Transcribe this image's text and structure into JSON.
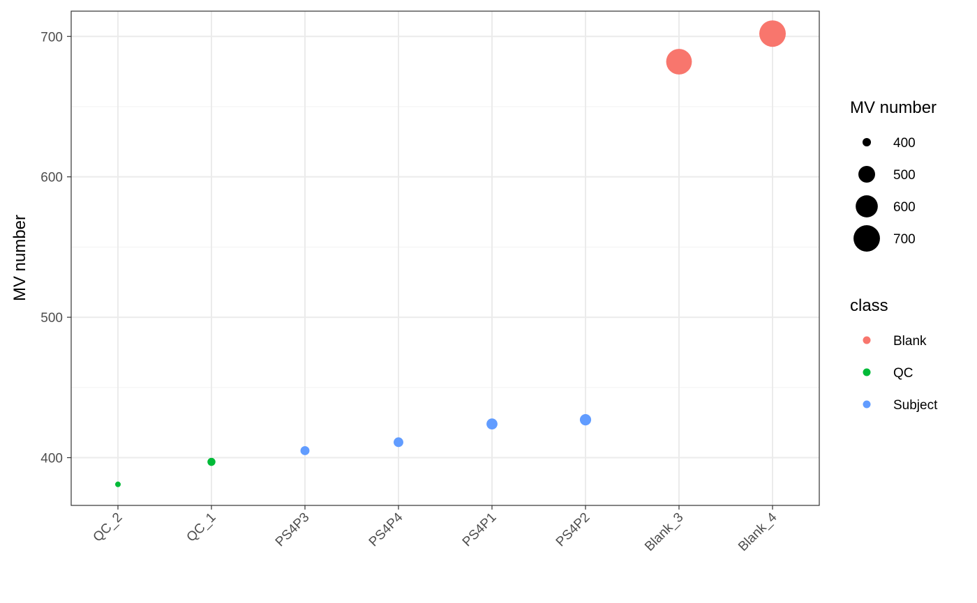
{
  "chart_data": {
    "type": "scatter",
    "title": "",
    "xlabel": "",
    "ylabel": "MV number",
    "categories": [
      "QC_2",
      "QC_1",
      "PS4P3",
      "PS4P4",
      "PS4P1",
      "PS4P2",
      "Blank_3",
      "Blank_4"
    ],
    "points": [
      {
        "x": "QC_2",
        "y": 381,
        "class": "QC"
      },
      {
        "x": "QC_1",
        "y": 397,
        "class": "QC"
      },
      {
        "x": "PS4P3",
        "y": 405,
        "class": "Subject"
      },
      {
        "x": "PS4P4",
        "y": 411,
        "class": "Subject"
      },
      {
        "x": "PS4P1",
        "y": 424,
        "class": "Subject"
      },
      {
        "x": "PS4P2",
        "y": 427,
        "class": "Subject"
      },
      {
        "x": "Blank_3",
        "y": 682,
        "class": "Blank"
      },
      {
        "x": "Blank_4",
        "y": 702,
        "class": "Blank"
      }
    ],
    "ylim": [
      366,
      718
    ],
    "yticks": [
      400,
      500,
      600,
      700
    ],
    "grid": true,
    "size_encoding": "MV number",
    "size_range": [
      381,
      702
    ],
    "legend_placement": "right",
    "legends": {
      "size": {
        "title": "MV number",
        "entries": [
          "400",
          "500",
          "600",
          "700"
        ]
      },
      "color": {
        "title": "class",
        "entries": [
          {
            "label": "Blank",
            "color": "#F8766D"
          },
          {
            "label": "QC",
            "color": "#00BA38"
          },
          {
            "label": "Subject",
            "color": "#619CFF"
          }
        ]
      }
    }
  }
}
